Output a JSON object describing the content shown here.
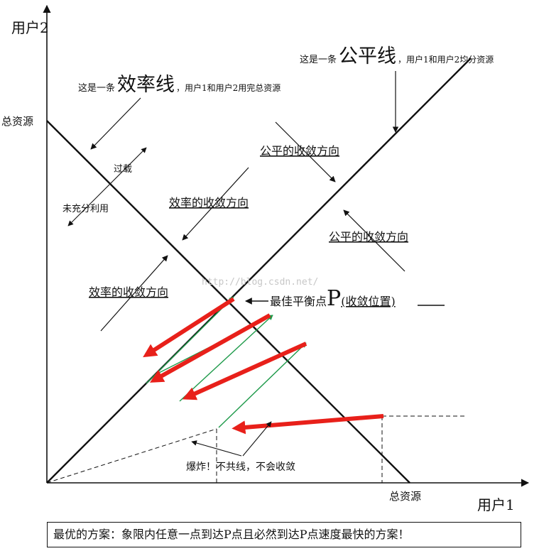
{
  "axes": {
    "y_label": "用户2",
    "x_label": "用户1",
    "y_total": "总资源",
    "x_total": "总资源"
  },
  "fair_line_note": {
    "prefix": "这是一条",
    "big": "公平线",
    "suffix": "，用户1和用户2均分资源"
  },
  "efficiency_line_note": {
    "prefix": "这是一条",
    "big": "效率线",
    "suffix": "，用户1和用户2用完总资源"
  },
  "overload": "过载",
  "underused": "未充分利用",
  "fair_dir_1": "公平的收敛方向",
  "fair_dir_2": "公平的收敛方向",
  "eff_dir_1": "效率的收敛方向",
  "eff_dir_2": "效率的收敛方向",
  "watermark": "http://blog.csdn.net/",
  "optimum": {
    "prefix": "最佳平衡点",
    "big": "P",
    "suffix": "(收敛位置)"
  },
  "explode": "爆炸！不共线，不会收敛",
  "footer": "最优的方案：象限内任意一点到达P点且必然到达P点速度最快的方案！",
  "colors": {
    "red_arrow": "#e8201a",
    "green_arrow": "#1e9a4a",
    "line": "#111111"
  }
}
